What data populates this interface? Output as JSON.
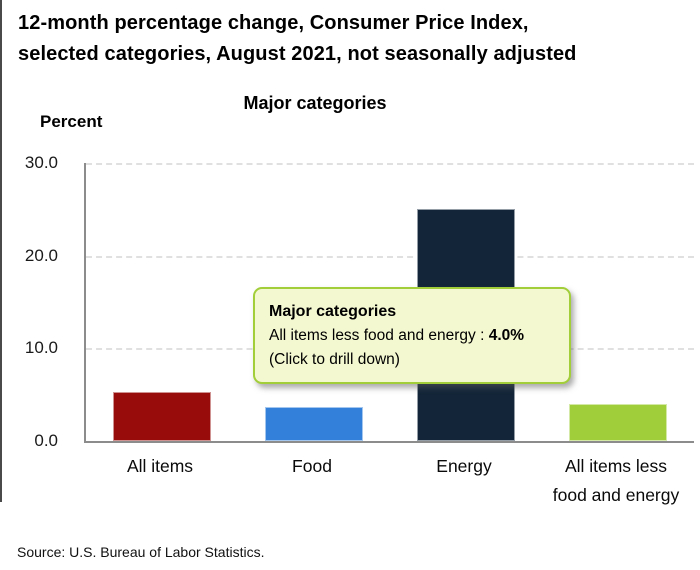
{
  "title": {
    "line1": "12-month percentage change, Consumer Price Index,",
    "line2": "selected categories, August 2021, not seasonally adjusted"
  },
  "percent_label": "Percent",
  "source": "Source: U.S. Bureau of Labor Statistics.",
  "tooltip": {
    "title": "Major categories",
    "category": "All items less food and energy : ",
    "value": "4.0%",
    "action_hint": "(Click to drill down)",
    "bg_color": "#f4f8d0",
    "border_color": "#a2ce39"
  },
  "chart_data": {
    "type": "bar",
    "title": "Major categories",
    "ylabel": "Percent",
    "categories": [
      "All items",
      "Food",
      "Energy",
      "All items less food and energy"
    ],
    "values": [
      5.3,
      3.7,
      25.0,
      4.0
    ],
    "bar_colors": [
      "#980c0c",
      "#3380db",
      "#132639",
      "#9fce3a"
    ],
    "ylim": [
      0,
      30
    ],
    "yticks": [
      0,
      10,
      20,
      30
    ],
    "ytick_labels": [
      "0.0",
      "10.0",
      "20.0",
      "30.0"
    ],
    "grid": "horizontal-dashed",
    "legend": "none",
    "xlabel": ""
  }
}
